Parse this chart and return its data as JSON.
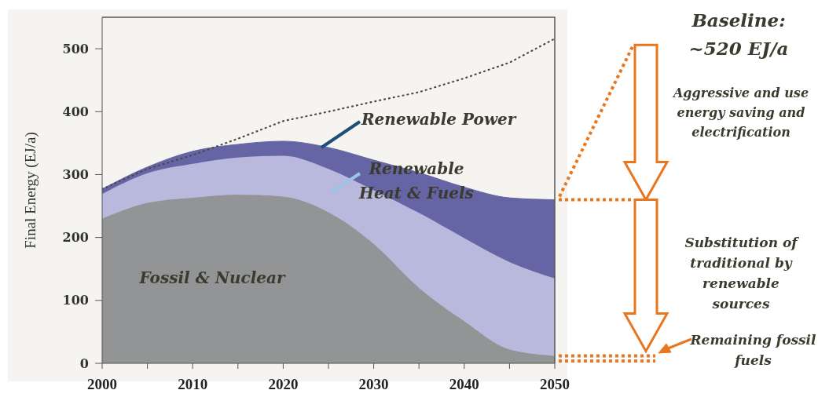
{
  "chart_data": {
    "type": "area",
    "stacked": true,
    "ylabel": "Final Energy (EJ/a)",
    "x": [
      2000,
      2005,
      2010,
      2015,
      2020,
      2025,
      2030,
      2035,
      2040,
      2045,
      2050
    ],
    "xlim": [
      2000,
      2050
    ],
    "xticks": [
      2000,
      {
        "value": 2005,
        "label": null
      },
      2010,
      {
        "value": 2015,
        "label": null
      },
      2020,
      {
        "value": 2025,
        "label": null
      },
      2030,
      {
        "value": 2035,
        "label": null
      },
      2040,
      {
        "value": 2045,
        "label": null
      },
      2050
    ],
    "ylim": [
      0,
      550
    ],
    "yticks": [
      0,
      100,
      200,
      300,
      400,
      500
    ],
    "series": [
      {
        "name": "Fossil & Nuclear",
        "color": "#939496",
        "values": [
          230,
          255,
          263,
          268,
          265,
          240,
          190,
          120,
          67,
          22,
          12
        ]
      },
      {
        "name": "Renewable Heat & Fuels",
        "color": "#b9b9dd",
        "values": [
          39,
          47,
          54,
          59,
          65,
          69,
          85,
          119,
          132,
          139,
          123
        ]
      },
      {
        "name": "Renewable Power",
        "color": "#6565a6",
        "values": [
          8,
          10,
          20,
          21,
          23,
          34,
          48,
          64,
          81,
          102,
          125
        ]
      },
      {
        "type": "line",
        "color": "#4a4a4a",
        "line_style": "dotted",
        "marker": "none",
        "values": [
          277,
          309,
          331,
          357,
          385,
          400,
          416,
          431,
          453,
          478,
          516
        ]
      }
    ],
    "annotations": [
      "Baseline: ~520 EJ/a",
      "Aggressive and use energy saving and electrification",
      "Substitution of traditional by renewable sources",
      "Remaining fossil fuels"
    ]
  }
}
